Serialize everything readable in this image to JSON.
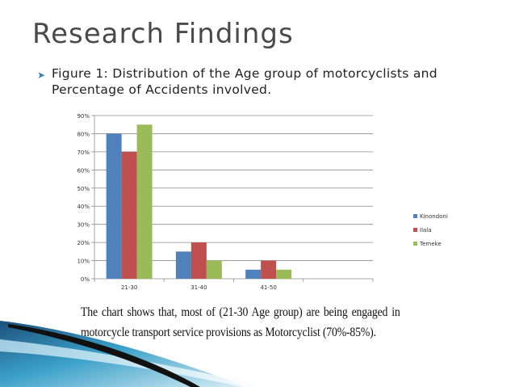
{
  "slide": {
    "title": "Research Findings",
    "caption": "Figure 1: Distribution of the Age group of motorcyclists and Percentage of Accidents involved.",
    "summary": "The chart shows that, most of (21-30 Age group) are being engaged in motorcycle transport service provisions as Motorcyclist (70%-85%).",
    "bullet_icon": "arrow-right-icon"
  },
  "chart_data": {
    "type": "bar",
    "categories": [
      "21-30",
      "31-40",
      "41-50",
      ""
    ],
    "series": [
      {
        "name": "Kinondoni",
        "color": "#4f81bd",
        "values": [
          80,
          15,
          5,
          null
        ]
      },
      {
        "name": "Ilala",
        "color": "#c0504d",
        "values": [
          70,
          20,
          10,
          null
        ]
      },
      {
        "name": "Temeke",
        "color": "#9bbb59",
        "values": [
          85,
          10,
          5,
          null
        ]
      }
    ],
    "y_ticks": [
      "0%",
      "10%",
      "20%",
      "30%",
      "40%",
      "50%",
      "60%",
      "70%",
      "80%",
      "90%"
    ],
    "ylim": [
      0,
      90
    ],
    "grid": true,
    "legend_position": "right"
  }
}
